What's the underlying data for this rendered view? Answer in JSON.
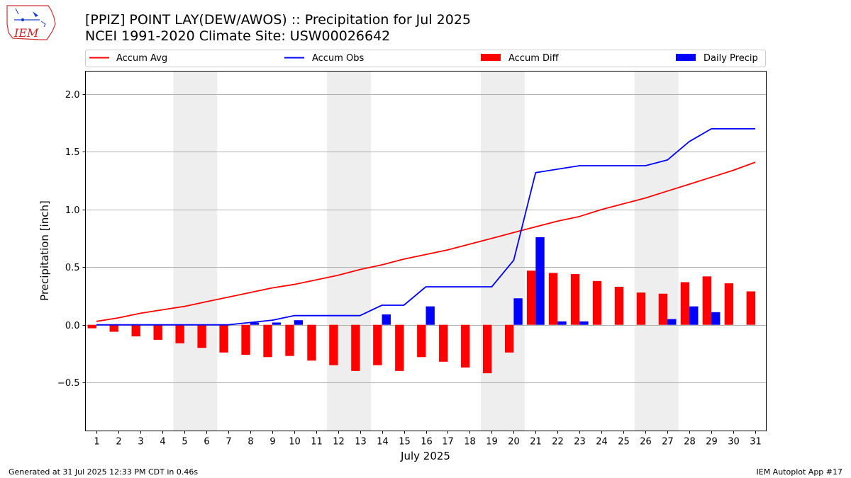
{
  "header": {
    "title_line1": "[PPIZ] POINT LAY(DEW/AWOS) :: Precipitation for Jul 2025",
    "title_line2": "NCEI 1991-2020 Climate Site: USW00026642",
    "logo_text": "IEM"
  },
  "footer": {
    "generated": "Generated at 31 Jul 2025 12:33 PM CDT in 0.46s",
    "app": "IEM Autoplot App #17"
  },
  "colors": {
    "avg": "#ff0000",
    "obs": "#0000ff",
    "diff": "#ff0000",
    "daily": "#0000ff",
    "weekend": "#eeeeee",
    "grid": "#b0b0b0"
  },
  "chart_data": {
    "type": "bar",
    "xlabel": "July 2025",
    "ylabel": "Precipitation [inch]",
    "xlim": [
      0.5,
      31.5
    ],
    "ylim": [
      -0.92,
      2.2
    ],
    "yticks": [
      -0.5,
      0.0,
      0.5,
      1.0,
      1.5,
      2.0
    ],
    "ytick_labels": [
      "−0.5",
      "0.0",
      "0.5",
      "1.0",
      "1.5",
      "2.0"
    ],
    "grid": "horizontal",
    "legend": {
      "position": "top",
      "entries": [
        "Accum Avg",
        "Accum Obs",
        "Accum Diff",
        "Daily Precip"
      ]
    },
    "shaded_days": [
      [
        5,
        6
      ],
      [
        12,
        13
      ],
      [
        19,
        20
      ],
      [
        26,
        27
      ]
    ],
    "days": [
      1,
      2,
      3,
      4,
      5,
      6,
      7,
      8,
      9,
      10,
      11,
      12,
      13,
      14,
      15,
      16,
      17,
      18,
      19,
      20,
      21,
      22,
      23,
      24,
      25,
      26,
      27,
      28,
      29,
      30,
      31
    ],
    "series": [
      {
        "name": "Accum Avg",
        "kind": "line",
        "values": [
          0.03,
          0.06,
          0.1,
          0.13,
          0.16,
          0.2,
          0.24,
          0.28,
          0.32,
          0.35,
          0.39,
          0.43,
          0.48,
          0.52,
          0.57,
          0.61,
          0.65,
          0.7,
          0.75,
          0.8,
          0.85,
          0.9,
          0.94,
          1.0,
          1.05,
          1.1,
          1.16,
          1.22,
          1.28,
          1.34,
          1.41
        ]
      },
      {
        "name": "Accum Obs",
        "kind": "line",
        "values": [
          0.0,
          0.0,
          0.0,
          0.0,
          0.0,
          0.0,
          0.0,
          0.02,
          0.04,
          0.08,
          0.08,
          0.08,
          0.08,
          0.17,
          0.17,
          0.33,
          0.33,
          0.33,
          0.33,
          0.56,
          1.32,
          1.35,
          1.38,
          1.38,
          1.38,
          1.38,
          1.43,
          1.59,
          1.7,
          1.7,
          1.7
        ]
      },
      {
        "name": "Accum Diff",
        "kind": "bar",
        "values": [
          -0.03,
          -0.06,
          -0.1,
          -0.13,
          -0.16,
          -0.2,
          -0.24,
          -0.26,
          -0.28,
          -0.27,
          -0.31,
          -0.35,
          -0.4,
          -0.35,
          -0.4,
          -0.28,
          -0.32,
          -0.37,
          -0.42,
          -0.24,
          0.47,
          0.45,
          0.44,
          0.38,
          0.33,
          0.28,
          0.27,
          0.37,
          0.42,
          0.36,
          0.29
        ]
      },
      {
        "name": "Daily Precip",
        "kind": "bar",
        "values": [
          0,
          0,
          0,
          0,
          0,
          0,
          0,
          0.02,
          0.02,
          0.04,
          0,
          0,
          0,
          0.09,
          0,
          0.16,
          0,
          0,
          0,
          0.23,
          0.76,
          0.03,
          0.03,
          0,
          0,
          0,
          0.05,
          0.16,
          0.11,
          0,
          0
        ]
      }
    ]
  }
}
